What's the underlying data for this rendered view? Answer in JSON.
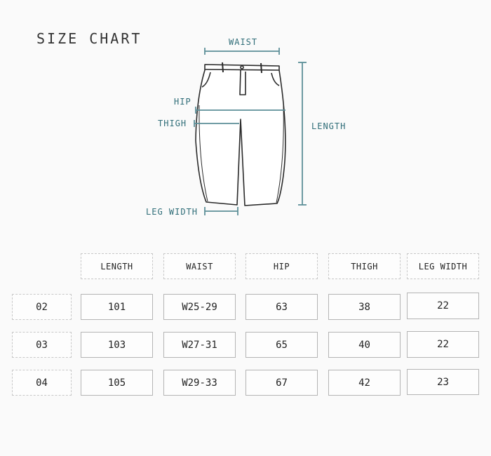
{
  "title": "SIZE CHART",
  "diagram": {
    "labels": {
      "waist": "WAIST",
      "hip": "HIP",
      "thigh": "THIGH",
      "length": "LENGTH",
      "leg_width": "LEG WIDTH"
    },
    "accent_color": "#3d7a85"
  },
  "table": {
    "headers": [
      "LENGTH",
      "WAIST",
      "HIP",
      "THIGH",
      "LEG WIDTH"
    ],
    "rows": [
      {
        "size": "02",
        "values": [
          "101",
          "W25-29",
          "63",
          "38",
          "22"
        ]
      },
      {
        "size": "03",
        "values": [
          "103",
          "W27-31",
          "65",
          "40",
          "22"
        ]
      },
      {
        "size": "04",
        "values": [
          "105",
          "W29-33",
          "67",
          "42",
          "23"
        ]
      }
    ]
  }
}
